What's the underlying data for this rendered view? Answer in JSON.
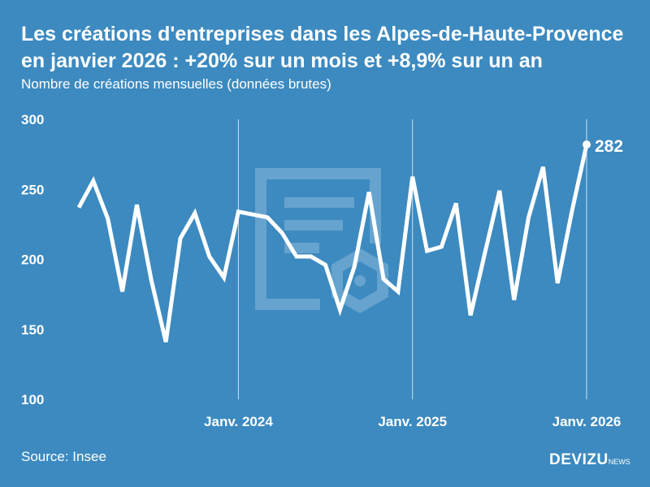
{
  "title": "Les créations d'entreprises dans les Alpes-de-Haute-Provence en janvier 2026 : +20% sur un mois et +8,9% sur un an",
  "subtitle": "Nombre de créations mensuelles (données brutes)",
  "source": "Source: Insee",
  "brand": {
    "name": "DEVIZU",
    "suffix": "NEWS"
  },
  "colors": {
    "background": "#3c8ac0",
    "line": "#ffffff"
  },
  "chart_data": {
    "type": "line",
    "title": "Les créations d'entreprises dans les Alpes-de-Haute-Provence en janvier 2026 : +20% sur un mois et +8,9% sur un an",
    "ylabel": "Nombre de créations mensuelles (données brutes)",
    "ylim": [
      100,
      300
    ],
    "yticks": [
      "100",
      "150",
      "200",
      "250",
      "300"
    ],
    "xticks": [
      {
        "label": "Janv. 2024",
        "index": 11
      },
      {
        "label": "Janv. 2025",
        "index": 23
      },
      {
        "label": "Janv. 2026",
        "index": 35
      }
    ],
    "x_start": "2023-02",
    "x_end": "2026-01",
    "values": [
      237,
      256,
      229,
      177,
      239,
      185,
      141,
      215,
      233,
      202,
      187,
      234,
      232,
      230,
      219,
      202,
      202,
      196,
      164,
      195,
      248,
      186,
      177,
      259,
      206,
      209,
      240,
      160,
      205,
      249,
      171,
      230,
      266,
      183,
      235,
      282
    ],
    "last_label": "282",
    "grid": "vertical lines at January"
  }
}
